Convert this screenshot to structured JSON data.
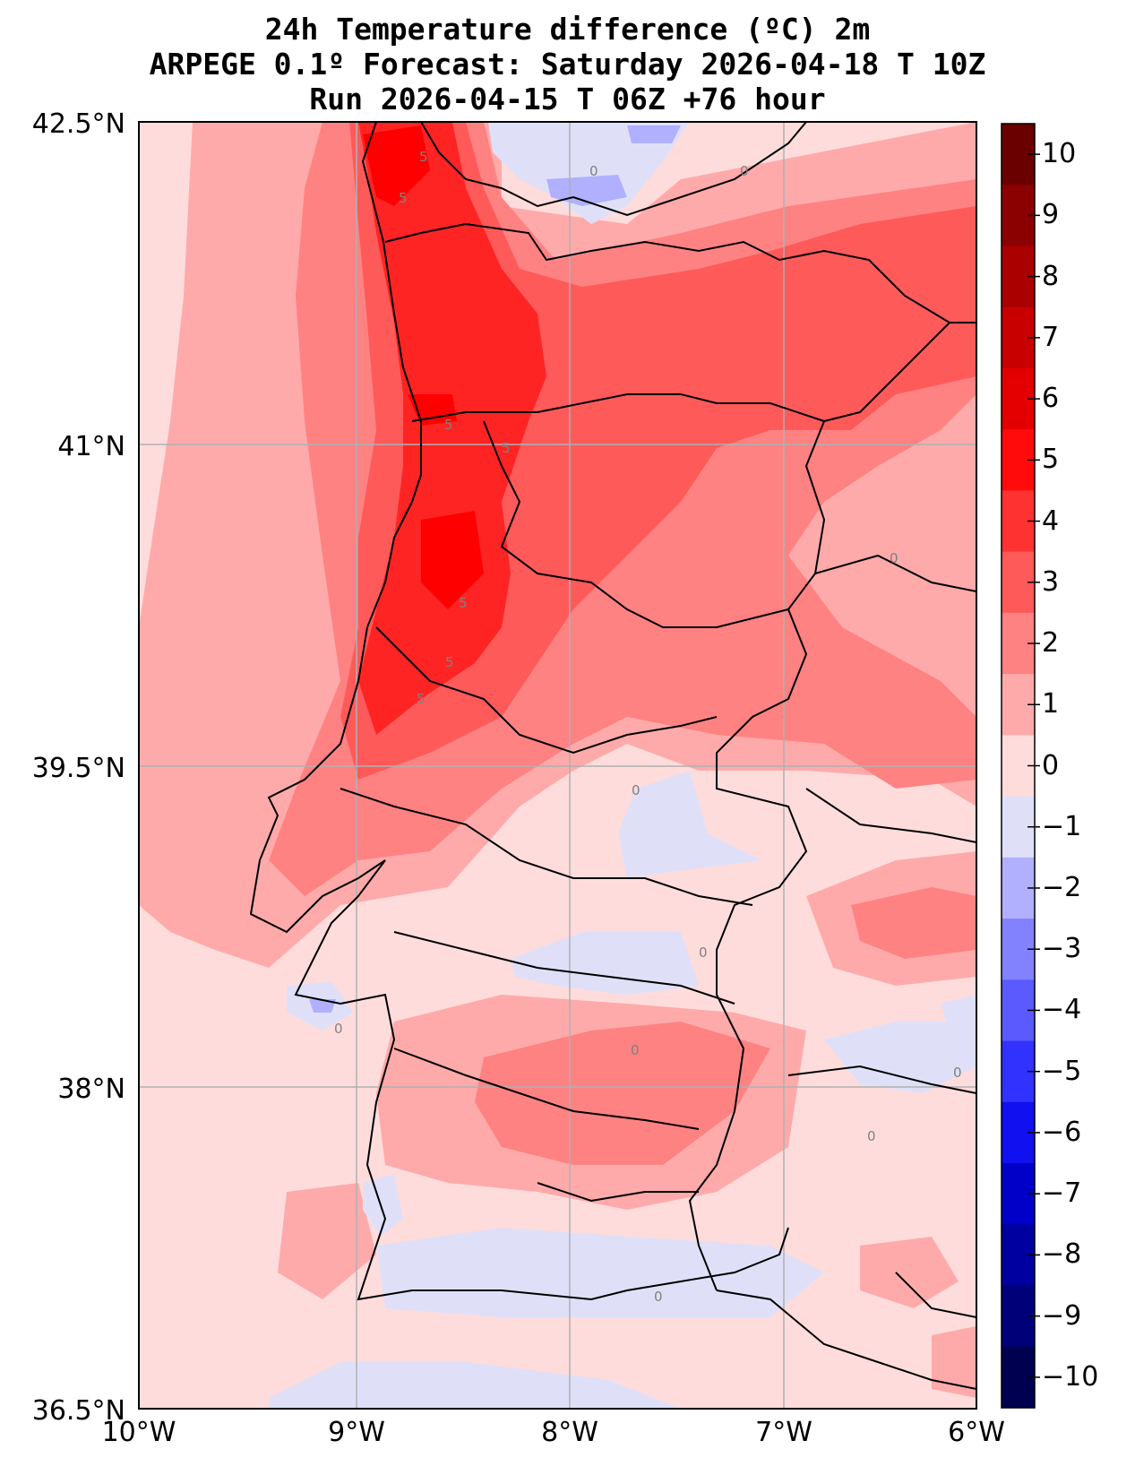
{
  "title": {
    "line1": "24h Temperature difference (ºC) 2m",
    "line2": "ARPEGE 0.1º Forecast: Saturday 2026-04-18 T 10Z",
    "line3": "Run 2026-04-15 T 06Z +76 hour"
  },
  "axes": {
    "lat_ticks": [
      "42.5°N",
      "41°N",
      "39.5°N",
      "38°N",
      "36.5°N"
    ],
    "lon_ticks": [
      "10°W",
      "9°W",
      "8°W",
      "7°W",
      "6°W"
    ],
    "lat_range": [
      36.5,
      42.5
    ],
    "lon_range": [
      -10,
      -6
    ],
    "grid": true
  },
  "contour_labels": [
    "5",
    "5",
    "5",
    "5",
    "5",
    "5",
    "5",
    "0",
    "0",
    "0",
    "0",
    "0",
    "0",
    "0",
    "0",
    "0",
    "0"
  ],
  "colorbar": {
    "ticks": [
      "10",
      "9",
      "8",
      "7",
      "6",
      "5",
      "4",
      "3",
      "2",
      "1",
      "0",
      "−1",
      "−2",
      "−3",
      "−4",
      "−5",
      "−6",
      "−7",
      "−8",
      "−9",
      "−10"
    ],
    "colors": [
      "#6b0000",
      "#8b0000",
      "#aa0000",
      "#c80000",
      "#e40000",
      "#ff0b0b",
      "#ff3232",
      "#ff5a5a",
      "#ff8282",
      "#ffaaaa",
      "#ffdcdc",
      "#dfe0f8",
      "#b0b0ff",
      "#8282ff",
      "#5a5aff",
      "#3232ff",
      "#1010f0",
      "#0000c8",
      "#0000a0",
      "#000078",
      "#000050"
    ]
  },
  "colors": {
    "sea_base": "#ffdcdc",
    "coast": "#000000",
    "grid": "#b0b0b0"
  }
}
